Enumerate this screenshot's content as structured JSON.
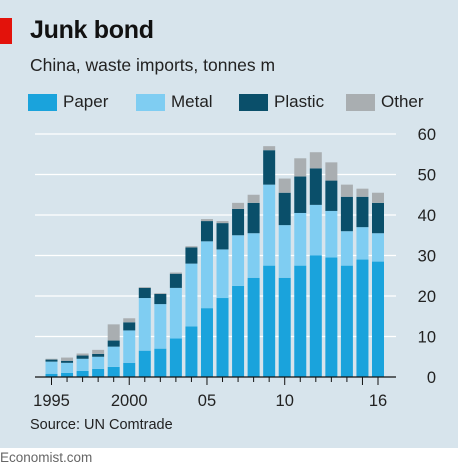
{
  "title": "Junk bond",
  "subtitle": "China, waste imports, tonnes m",
  "source": "Source: UN Comtrade",
  "brand": "Economist.com",
  "colors": {
    "paper": "#1aa3dc",
    "metal": "#7fcdf2",
    "plastic": "#0a4f6a",
    "other": "#a9aeb1"
  },
  "chart_data": {
    "type": "bar",
    "stacked": true,
    "categories": [
      "1995",
      "1996",
      "1997",
      "1998",
      "1999",
      "2000",
      "2001",
      "2002",
      "2003",
      "2004",
      "2005",
      "2006",
      "2007",
      "2008",
      "2009",
      "2010",
      "2011",
      "2012",
      "2013",
      "2014",
      "2015",
      "2016"
    ],
    "x_tick_labels": [
      {
        "index": 0,
        "label": "1995"
      },
      {
        "index": 5,
        "label": "2000"
      },
      {
        "index": 10,
        "label": "05"
      },
      {
        "index": 15,
        "label": "10"
      },
      {
        "index": 21,
        "label": "16"
      }
    ],
    "series": [
      {
        "name": "Paper",
        "key": "paper",
        "values": [
          0.8,
          1.0,
          1.5,
          2.0,
          2.5,
          3.5,
          6.5,
          7.0,
          9.5,
          12.5,
          17.0,
          19.5,
          22.5,
          24.5,
          27.5,
          24.5,
          27.5,
          30.0,
          29.5,
          27.5,
          29.0,
          28.5
        ]
      },
      {
        "name": "Metal",
        "key": "metal",
        "values": [
          3.0,
          2.5,
          3.0,
          3.0,
          5.0,
          8.0,
          13.0,
          11.0,
          12.5,
          15.5,
          16.5,
          12.0,
          12.5,
          11.0,
          20.0,
          13.0,
          13.0,
          12.5,
          11.5,
          8.5,
          8.0,
          7.0
        ]
      },
      {
        "name": "Plastic",
        "key": "plastic",
        "values": [
          0.5,
          0.5,
          0.8,
          0.7,
          1.5,
          2.0,
          2.5,
          2.5,
          3.5,
          4.0,
          5.0,
          6.5,
          6.5,
          7.5,
          8.5,
          8.0,
          9.0,
          9.0,
          7.5,
          8.5,
          7.5,
          7.5
        ]
      },
      {
        "name": "Other",
        "key": "other",
        "values": [
          0.2,
          0.8,
          0.5,
          1.0,
          4.0,
          1.0,
          0.2,
          0.2,
          0.3,
          0.3,
          0.5,
          0.5,
          1.5,
          2.0,
          1.0,
          3.5,
          4.5,
          4.0,
          4.5,
          3.0,
          2.0,
          2.5
        ]
      }
    ],
    "ylim": [
      0,
      60
    ],
    "yticks": [
      "0",
      "10",
      "20",
      "30",
      "40",
      "50",
      "60"
    ],
    "y_axis_side": "right",
    "grid": true,
    "legend_placement": "top"
  }
}
